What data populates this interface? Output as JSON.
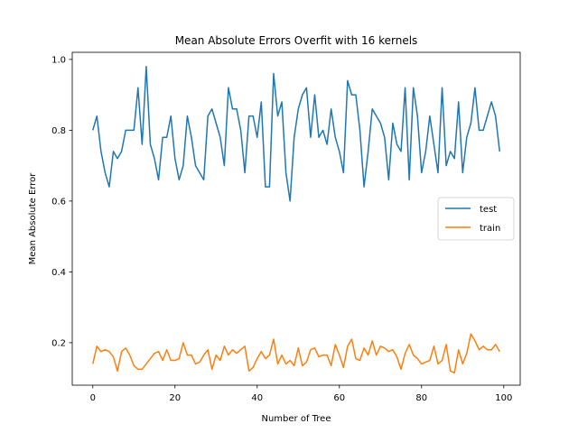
{
  "chart_data": {
    "type": "line",
    "title": "Mean Absolute Errors Overfit with 16 kernels",
    "xlabel": "Number of Tree",
    "ylabel": "Mean Absolute Error",
    "xlim": [
      -5,
      104
    ],
    "ylim": [
      0.08,
      1.02
    ],
    "xticks": [
      0,
      20,
      40,
      60,
      80,
      100
    ],
    "yticks": [
      0.2,
      0.4,
      0.6,
      0.8,
      1.0
    ],
    "xtick_labels": [
      "0",
      "20",
      "40",
      "60",
      "80",
      "100"
    ],
    "ytick_labels": [
      "0.2",
      "0.4",
      "0.6",
      "0.8",
      "1.0"
    ],
    "grid": false,
    "legend": "center-right",
    "x": [
      0,
      1,
      2,
      3,
      4,
      5,
      6,
      7,
      8,
      9,
      10,
      11,
      12,
      13,
      14,
      15,
      16,
      17,
      18,
      19,
      20,
      21,
      22,
      23,
      24,
      25,
      26,
      27,
      28,
      29,
      30,
      31,
      32,
      33,
      34,
      35,
      36,
      37,
      38,
      39,
      40,
      41,
      42,
      43,
      44,
      45,
      46,
      47,
      48,
      49,
      50,
      51,
      52,
      53,
      54,
      55,
      56,
      57,
      58,
      59,
      60,
      61,
      62,
      63,
      64,
      65,
      66,
      67,
      68,
      69,
      70,
      71,
      72,
      73,
      74,
      75,
      76,
      77,
      78,
      79,
      80,
      81,
      82,
      83,
      84,
      85,
      86,
      87,
      88,
      89,
      90,
      91,
      92,
      93,
      94,
      95,
      96,
      97,
      98,
      99
    ],
    "series": [
      {
        "name": "test",
        "color": "#1f77b4",
        "values": [
          0.8,
          0.84,
          0.74,
          0.68,
          0.64,
          0.74,
          0.72,
          0.74,
          0.8,
          0.8,
          0.8,
          0.92,
          0.76,
          0.98,
          0.76,
          0.72,
          0.66,
          0.78,
          0.78,
          0.84,
          0.72,
          0.66,
          0.7,
          0.84,
          0.78,
          0.7,
          0.68,
          0.66,
          0.84,
          0.86,
          0.82,
          0.78,
          0.7,
          0.92,
          0.86,
          0.86,
          0.8,
          0.68,
          0.84,
          0.84,
          0.78,
          0.88,
          0.64,
          0.64,
          0.96,
          0.84,
          0.88,
          0.68,
          0.6,
          0.78,
          0.86,
          0.9,
          0.92,
          0.78,
          0.9,
          0.78,
          0.8,
          0.76,
          0.86,
          0.78,
          0.74,
          0.68,
          0.94,
          0.9,
          0.9,
          0.8,
          0.64,
          0.74,
          0.86,
          0.84,
          0.82,
          0.78,
          0.66,
          0.82,
          0.76,
          0.74,
          0.92,
          0.66,
          0.92,
          0.84,
          0.68,
          0.74,
          0.84,
          0.76,
          0.68,
          0.92,
          0.7,
          0.74,
          0.72,
          0.88,
          0.68,
          0.78,
          0.82,
          0.92,
          0.8,
          0.8,
          0.84,
          0.88,
          0.84,
          0.74
        ]
      },
      {
        "name": "train",
        "color": "#ff7f0e",
        "values": [
          0.14,
          0.19,
          0.175,
          0.18,
          0.175,
          0.16,
          0.12,
          0.175,
          0.185,
          0.165,
          0.135,
          0.125,
          0.125,
          0.14,
          0.155,
          0.17,
          0.175,
          0.15,
          0.18,
          0.15,
          0.15,
          0.155,
          0.2,
          0.165,
          0.165,
          0.14,
          0.145,
          0.165,
          0.18,
          0.125,
          0.165,
          0.15,
          0.19,
          0.165,
          0.18,
          0.17,
          0.18,
          0.19,
          0.12,
          0.13,
          0.155,
          0.175,
          0.155,
          0.165,
          0.21,
          0.14,
          0.165,
          0.14,
          0.15,
          0.135,
          0.185,
          0.135,
          0.145,
          0.18,
          0.185,
          0.16,
          0.165,
          0.165,
          0.135,
          0.195,
          0.165,
          0.13,
          0.19,
          0.21,
          0.155,
          0.15,
          0.185,
          0.165,
          0.205,
          0.165,
          0.19,
          0.185,
          0.175,
          0.18,
          0.16,
          0.125,
          0.17,
          0.195,
          0.165,
          0.155,
          0.14,
          0.145,
          0.15,
          0.19,
          0.14,
          0.15,
          0.195,
          0.12,
          0.115,
          0.18,
          0.14,
          0.17,
          0.225,
          0.205,
          0.18,
          0.19,
          0.18,
          0.18,
          0.195,
          0.175
        ]
      }
    ]
  }
}
